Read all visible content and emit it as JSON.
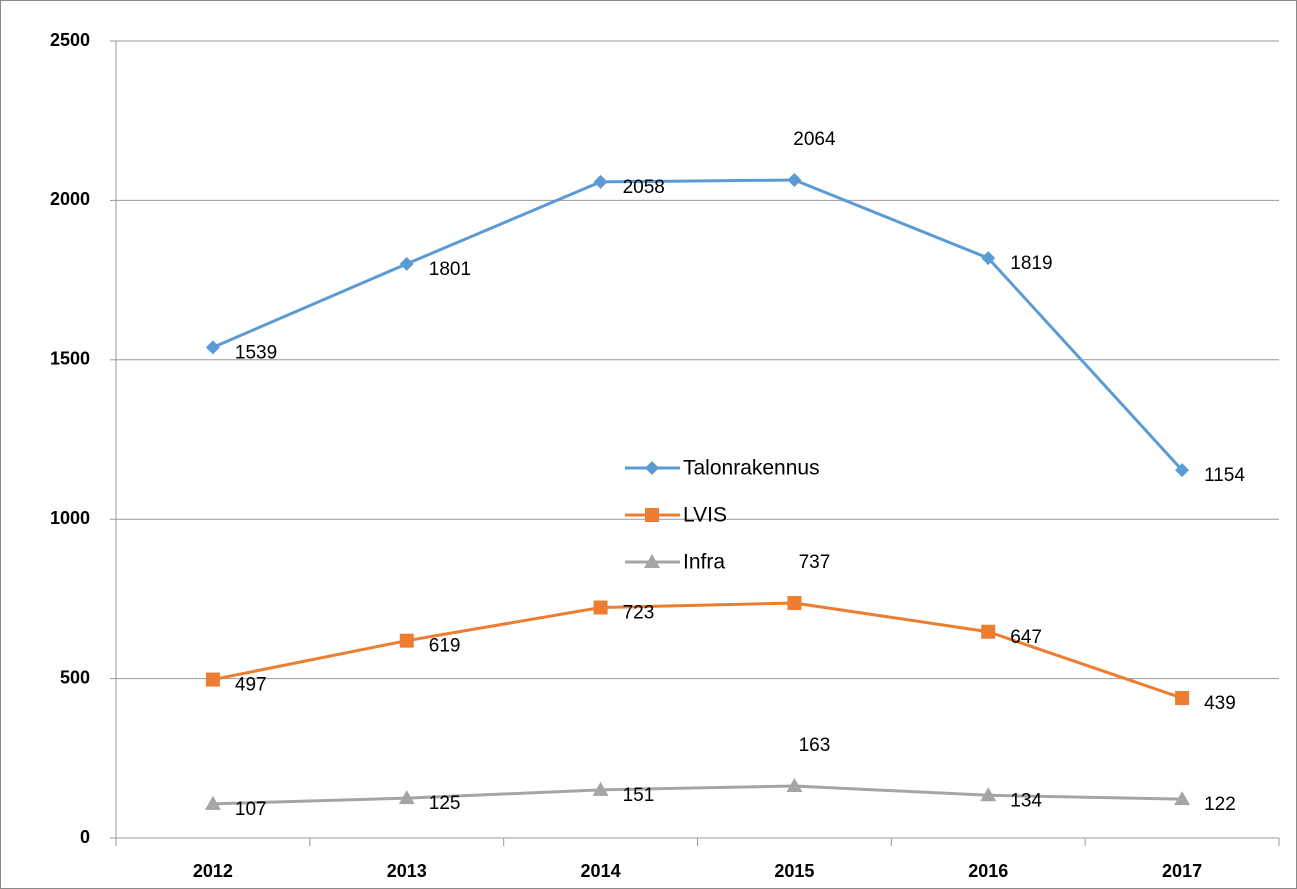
{
  "chart_data": {
    "type": "line",
    "categories": [
      "2012",
      "2013",
      "2014",
      "2015",
      "2016",
      "2017"
    ],
    "series": [
      {
        "name": "Talonrakennus",
        "color": "#5b9bd5",
        "marker": "diamond",
        "values": [
          1539,
          1801,
          2058,
          2064,
          1819,
          1154
        ]
      },
      {
        "name": "LVIS",
        "color": "#ed7d31",
        "marker": "square",
        "values": [
          497,
          619,
          723,
          737,
          647,
          439
        ]
      },
      {
        "name": "Infra",
        "color": "#a5a5a5",
        "marker": "triangle",
        "values": [
          107,
          125,
          151,
          163,
          134,
          122
        ]
      }
    ],
    "ylim": [
      0,
      2500
    ],
    "yticks": [
      0,
      500,
      1000,
      1500,
      2000,
      2500
    ],
    "grid": true,
    "legend": "center"
  }
}
